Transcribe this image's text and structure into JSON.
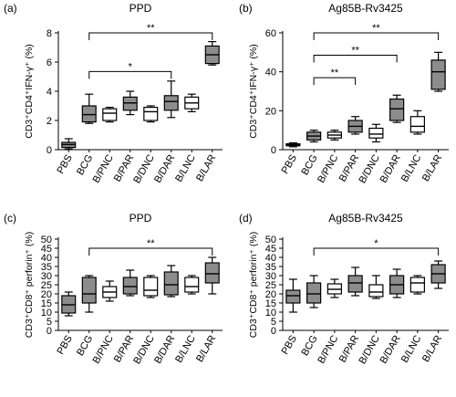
{
  "figure": {
    "categories": [
      "PBS",
      "BCG",
      "B/PNC",
      "B/PAR",
      "B/DNC",
      "B/DAR",
      "B/LNC",
      "B/LAR"
    ],
    "filled_groups": [
      "PBS",
      "BCG",
      "B/PAR",
      "B/DAR",
      "B/LAR"
    ],
    "box_colors": {
      "filled": "#8c8c8c",
      "open": "#ffffff",
      "stroke": "#000000"
    }
  },
  "chart_data": [
    {
      "panel": "(a)",
      "type": "box",
      "title": "PPD",
      "ylabel": "CD3⁺CD4⁺IFN-γ⁺ (%)",
      "ylim": [
        0,
        8
      ],
      "yticks": [
        0,
        2,
        4,
        6,
        8
      ],
      "grid": false,
      "categories": [
        "PBS",
        "BCG",
        "B/PNC",
        "B/PAR",
        "B/DNC",
        "B/DAR",
        "B/LNC",
        "B/LAR"
      ],
      "boxes": [
        {
          "min": 0.05,
          "q1": 0.15,
          "median": 0.35,
          "q3": 0.5,
          "max": 0.75
        },
        {
          "min": 1.8,
          "q1": 1.9,
          "median": 2.4,
          "q3": 3.0,
          "max": 3.8
        },
        {
          "min": 1.9,
          "q1": 2.0,
          "median": 2.5,
          "q3": 2.8,
          "max": 2.9
        },
        {
          "min": 2.4,
          "q1": 2.7,
          "median": 3.2,
          "q3": 3.6,
          "max": 4.0
        },
        {
          "min": 1.9,
          "q1": 2.0,
          "median": 2.6,
          "q3": 2.9,
          "max": 3.0
        },
        {
          "min": 2.2,
          "q1": 2.7,
          "median": 3.3,
          "q3": 3.7,
          "max": 4.7
        },
        {
          "min": 2.6,
          "q1": 2.8,
          "median": 3.2,
          "q3": 3.6,
          "max": 3.8
        },
        {
          "min": 5.8,
          "q1": 5.9,
          "median": 6.5,
          "q3": 7.1,
          "max": 7.4
        }
      ],
      "significance": [
        {
          "from": "BCG",
          "to": "B/LAR",
          "label": "**",
          "y": 8.0
        },
        {
          "from": "BCG",
          "to": "B/DAR",
          "label": "*",
          "y": 5.35
        }
      ]
    },
    {
      "panel": "(b)",
      "type": "box",
      "title": "Ag85B-Rv3425",
      "ylabel": "CD3⁺CD4⁺IFN-γ⁺ (%)",
      "ylim": [
        0,
        60
      ],
      "yticks": [
        0,
        20,
        40,
        60
      ],
      "grid": false,
      "categories": [
        "PBS",
        "BCG",
        "B/PNC",
        "B/PAR",
        "B/DNC",
        "B/DAR",
        "B/LNC",
        "B/LAR"
      ],
      "boxes": [
        {
          "min": 1.5,
          "q1": 2.0,
          "median": 2.5,
          "q3": 3.0,
          "max": 3.5
        },
        {
          "min": 4.0,
          "q1": 5.0,
          "median": 7.0,
          "q3": 9.0,
          "max": 10.0
        },
        {
          "min": 5.0,
          "q1": 6.0,
          "median": 7.5,
          "q3": 9.0,
          "max": 10.0
        },
        {
          "min": 8.0,
          "q1": 9.0,
          "median": 12.0,
          "q3": 15.0,
          "max": 17.0
        },
        {
          "min": 4.0,
          "q1": 6.0,
          "median": 8.0,
          "q3": 11.0,
          "max": 13.0
        },
        {
          "min": 14.0,
          "q1": 15.0,
          "median": 21.0,
          "q3": 26.0,
          "max": 28.0
        },
        {
          "min": 8.0,
          "q1": 9.0,
          "median": 12.0,
          "q3": 17.0,
          "max": 20.0
        },
        {
          "min": 30.0,
          "q1": 31.0,
          "median": 40.0,
          "q3": 46.0,
          "max": 50.0
        }
      ],
      "significance": [
        {
          "from": "BCG",
          "to": "B/LAR",
          "label": "**",
          "y": 60.0
        },
        {
          "from": "BCG",
          "to": "B/DAR",
          "label": "**",
          "y": 48.5
        },
        {
          "from": "BCG",
          "to": "B/PAR",
          "label": "**",
          "y": 37.0
        }
      ]
    },
    {
      "panel": "(c)",
      "type": "box",
      "title": "PPD",
      "ylabel": "CD3⁺CD8⁺ perforin⁺ (%)",
      "ylim": [
        0,
        50
      ],
      "yticks": [
        0,
        5,
        10,
        15,
        20,
        25,
        30,
        35,
        40,
        45,
        50
      ],
      "grid": false,
      "categories": [
        "PBS",
        "BCG",
        "B/PNC",
        "B/PAR",
        "B/DNC",
        "B/DAR",
        "B/LNC",
        "B/LAR"
      ],
      "boxes": [
        {
          "min": 8.0,
          "q1": 9.5,
          "median": 14.0,
          "q3": 19.0,
          "max": 21.0
        },
        {
          "min": 10.0,
          "q1": 15.0,
          "median": 20.0,
          "q3": 29.0,
          "max": 30.0
        },
        {
          "min": 16.0,
          "q1": 18.0,
          "median": 21.0,
          "q3": 24.0,
          "max": 27.0
        },
        {
          "min": 19.0,
          "q1": 20.0,
          "median": 24.0,
          "q3": 29.0,
          "max": 33.0
        },
        {
          "min": 18.0,
          "q1": 19.0,
          "median": 22.0,
          "q3": 29.0,
          "max": 30.0
        },
        {
          "min": 18.5,
          "q1": 19.5,
          "median": 25.0,
          "q3": 32.0,
          "max": 35.5
        },
        {
          "min": 20.0,
          "q1": 21.0,
          "median": 24.0,
          "q3": 29.0,
          "max": 30.0
        },
        {
          "min": 20.0,
          "q1": 26.0,
          "median": 31.0,
          "q3": 37.0,
          "max": 40.0
        }
      ],
      "significance": [
        {
          "from": "BCG",
          "to": "B/LAR",
          "label": "**",
          "y": 45.0
        }
      ]
    },
    {
      "panel": "(d)",
      "type": "box",
      "title": "Ag85B-Rv3425",
      "ylabel": "CD3⁺CD8⁺ perforin⁺ (%)",
      "ylim": [
        0,
        50
      ],
      "yticks": [
        0,
        5,
        10,
        15,
        20,
        25,
        30,
        35,
        40,
        45,
        50
      ],
      "grid": false,
      "categories": [
        "PBS",
        "BCG",
        "B/PNC",
        "B/PAR",
        "B/DNC",
        "B/DAR",
        "B/LNC",
        "B/LAR"
      ],
      "boxes": [
        {
          "min": 10.0,
          "q1": 15.0,
          "median": 19.0,
          "q3": 22.0,
          "max": 28.0
        },
        {
          "min": 12.5,
          "q1": 15.0,
          "median": 20.0,
          "q3": 26.0,
          "max": 30.0
        },
        {
          "min": 18.0,
          "q1": 20.0,
          "median": 22.5,
          "q3": 25.5,
          "max": 28.0
        },
        {
          "min": 19.0,
          "q1": 21.0,
          "median": 26.0,
          "q3": 30.0,
          "max": 34.5
        },
        {
          "min": 17.5,
          "q1": 18.5,
          "median": 21.0,
          "q3": 25.0,
          "max": 30.0
        },
        {
          "min": 18.0,
          "q1": 20.0,
          "median": 25.0,
          "q3": 30.0,
          "max": 33.5
        },
        {
          "min": 20.0,
          "q1": 21.0,
          "median": 26.0,
          "q3": 29.0,
          "max": 30.0
        },
        {
          "min": 23.0,
          "q1": 26.0,
          "median": 31.0,
          "q3": 36.0,
          "max": 38.0
        }
      ],
      "significance": [
        {
          "from": "BCG",
          "to": "B/LAR",
          "label": "*",
          "y": 45.0
        }
      ]
    }
  ]
}
